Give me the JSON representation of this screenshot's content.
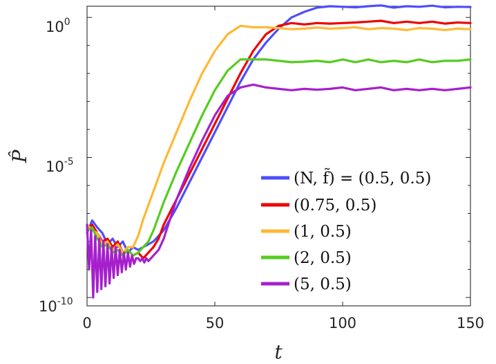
{
  "chart_data": {
    "type": "line",
    "title": "",
    "xlabel": "t",
    "ylabel": "P̂",
    "xlim": [
      0,
      150
    ],
    "ylim_log10": [
      -10.3,
      0.4
    ],
    "yscale": "log",
    "grid": false,
    "legend_position": "bottom-right",
    "x_ticks": [
      {
        "value": 0,
        "label": "0"
      },
      {
        "value": 50,
        "label": "50"
      },
      {
        "value": 100,
        "label": "100"
      },
      {
        "value": 150,
        "label": "150"
      }
    ],
    "y_ticks": [
      {
        "log10": 0,
        "base": "10",
        "exp": "0"
      },
      {
        "log10": -5,
        "base": "10",
        "exp": "-5"
      },
      {
        "log10": -10,
        "base": "10",
        "exp": "-10"
      }
    ],
    "series": [
      {
        "name": "(N, f̃) = (0.5, 0.5)",
        "color": "#4d4dff",
        "x": [
          0,
          2,
          4,
          6,
          8,
          10,
          12,
          14,
          16,
          18,
          20,
          22,
          24,
          26,
          28,
          30,
          35,
          40,
          45,
          50,
          55,
          60,
          65,
          70,
          75,
          80,
          85,
          90,
          95,
          100,
          105,
          110,
          115,
          120,
          125,
          130,
          135,
          140,
          145,
          150
        ],
        "log10": [
          -7.7,
          -7.25,
          -7.5,
          -7.7,
          -8.1,
          -7.9,
          -8.2,
          -8.0,
          -8.4,
          -8.2,
          -8.3,
          -8.2,
          -8.1,
          -8.0,
          -7.8,
          -7.6,
          -6.8,
          -5.9,
          -5.0,
          -4.1,
          -3.2,
          -2.3,
          -1.5,
          -0.9,
          -0.4,
          0.0,
          0.2,
          0.35,
          0.4,
          0.38,
          0.36,
          0.4,
          0.43,
          0.35,
          0.4,
          0.38,
          0.42,
          0.36,
          0.38,
          0.37
        ]
      },
      {
        "name": "(0.75, 0.5)",
        "color": "#ee0000",
        "x": [
          0,
          2,
          4,
          6,
          8,
          10,
          12,
          14,
          16,
          18,
          20,
          22,
          24,
          26,
          28,
          30,
          35,
          40,
          45,
          50,
          55,
          60,
          65,
          70,
          75,
          80,
          85,
          90,
          95,
          100,
          105,
          110,
          115,
          120,
          125,
          130,
          135,
          140,
          145,
          150
        ],
        "log10": [
          -7.6,
          -7.4,
          -7.7,
          -8.0,
          -7.9,
          -8.2,
          -8.0,
          -8.4,
          -8.3,
          -8.5,
          -8.4,
          -8.6,
          -8.4,
          -8.2,
          -7.9,
          -7.4,
          -6.5,
          -5.6,
          -4.7,
          -3.8,
          -2.9,
          -2.0,
          -1.2,
          -0.6,
          -0.3,
          -0.2,
          -0.25,
          -0.2,
          -0.22,
          -0.2,
          -0.18,
          -0.15,
          -0.12,
          -0.2,
          -0.15,
          -0.2,
          -0.15,
          -0.22,
          -0.18,
          -0.2
        ]
      },
      {
        "name": "(1, 0.5)",
        "color": "#ffb833",
        "x": [
          0,
          2,
          4,
          6,
          8,
          10,
          12,
          14,
          16,
          18,
          20,
          22,
          24,
          26,
          28,
          30,
          35,
          40,
          45,
          50,
          55,
          60,
          65,
          70,
          75,
          80,
          85,
          90,
          95,
          100,
          105,
          110,
          115,
          120,
          125,
          130,
          135,
          140,
          145,
          150
        ],
        "log10": [
          -7.4,
          -7.6,
          -7.7,
          -8.1,
          -8.0,
          -8.3,
          -8.1,
          -8.4,
          -8.2,
          -8.2,
          -7.8,
          -7.2,
          -6.7,
          -6.2,
          -5.7,
          -5.2,
          -4.1,
          -3.0,
          -2.0,
          -1.2,
          -0.6,
          -0.3,
          -0.35,
          -0.35,
          -0.38,
          -0.42,
          -0.4,
          -0.36,
          -0.4,
          -0.38,
          -0.35,
          -0.42,
          -0.38,
          -0.4,
          -0.45,
          -0.38,
          -0.4,
          -0.45,
          -0.4,
          -0.42
        ]
      },
      {
        "name": "(2, 0.5)",
        "color": "#55cc1f",
        "x": [
          0,
          2,
          4,
          6,
          8,
          10,
          12,
          14,
          16,
          18,
          20,
          22,
          24,
          26,
          28,
          30,
          35,
          40,
          45,
          50,
          55,
          60,
          65,
          70,
          75,
          80,
          85,
          90,
          95,
          100,
          105,
          110,
          115,
          120,
          125,
          130,
          135,
          140,
          145,
          150
        ],
        "log10": [
          -7.6,
          -7.5,
          -7.9,
          -8.2,
          -8.1,
          -8.4,
          -8.3,
          -8.5,
          -8.3,
          -8.5,
          -8.4,
          -8.2,
          -8.0,
          -7.6,
          -7.1,
          -6.6,
          -5.5,
          -4.5,
          -3.5,
          -2.6,
          -1.9,
          -1.5,
          -1.5,
          -1.5,
          -1.55,
          -1.6,
          -1.58,
          -1.55,
          -1.6,
          -1.5,
          -1.6,
          -1.5,
          -1.6,
          -1.55,
          -1.6,
          -1.5,
          -1.6,
          -1.55,
          -1.55,
          -1.5
        ]
      },
      {
        "name": "(5, 0.5)",
        "color": "#a520cc",
        "x": [
          0,
          0.8,
          1.6,
          2.4,
          3.2,
          4.0,
          4.8,
          5.6,
          6.4,
          7.2,
          8.0,
          8.8,
          9.6,
          10.4,
          11.2,
          12.0,
          12.8,
          13.6,
          14.4,
          15.2,
          16.0,
          16.8,
          17.6,
          18.4,
          19.2,
          20.0,
          20.8,
          21.6,
          22.4,
          23.2,
          24.0,
          26,
          28,
          30,
          35,
          40,
          45,
          50,
          55,
          60,
          65,
          70,
          75,
          80,
          85,
          90,
          95,
          100,
          105,
          110,
          115,
          120,
          125,
          130,
          135,
          140,
          145,
          150
        ],
        "log10": [
          -7.4,
          -9.0,
          -7.6,
          -10.0,
          -7.8,
          -9.8,
          -7.9,
          -9.7,
          -8.0,
          -9.6,
          -8.1,
          -9.5,
          -8.2,
          -9.3,
          -8.2,
          -9.2,
          -8.3,
          -9.1,
          -8.4,
          -9.0,
          -8.4,
          -8.9,
          -8.5,
          -8.8,
          -8.6,
          -8.6,
          -8.7,
          -8.6,
          -8.75,
          -8.6,
          -8.7,
          -8.5,
          -8.3,
          -7.9,
          -6.5,
          -5.4,
          -4.4,
          -3.5,
          -2.8,
          -2.5,
          -2.4,
          -2.5,
          -2.55,
          -2.6,
          -2.55,
          -2.58,
          -2.55,
          -2.5,
          -2.6,
          -2.55,
          -2.5,
          -2.6,
          -2.55,
          -2.6,
          -2.55,
          -2.6,
          -2.55,
          -2.5
        ]
      }
    ]
  }
}
